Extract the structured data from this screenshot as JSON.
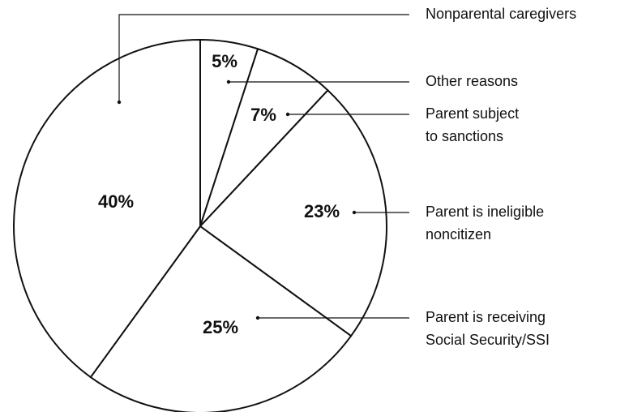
{
  "chart_data": {
    "type": "pie",
    "categories": [
      [
        "Other reasons"
      ],
      [
        "Parent subject",
        "to sanctions"
      ],
      [
        "Parent is ineligible",
        "noncitizen"
      ],
      [
        "Parent is receiving",
        "Social Security/SSI"
      ],
      [
        "Nonparental caregivers"
      ]
    ],
    "values": [
      5,
      7,
      23,
      25,
      40
    ],
    "value_labels": [
      "5%",
      "7%",
      "23%",
      "25%",
      "40%"
    ],
    "color": "#ffffff"
  }
}
